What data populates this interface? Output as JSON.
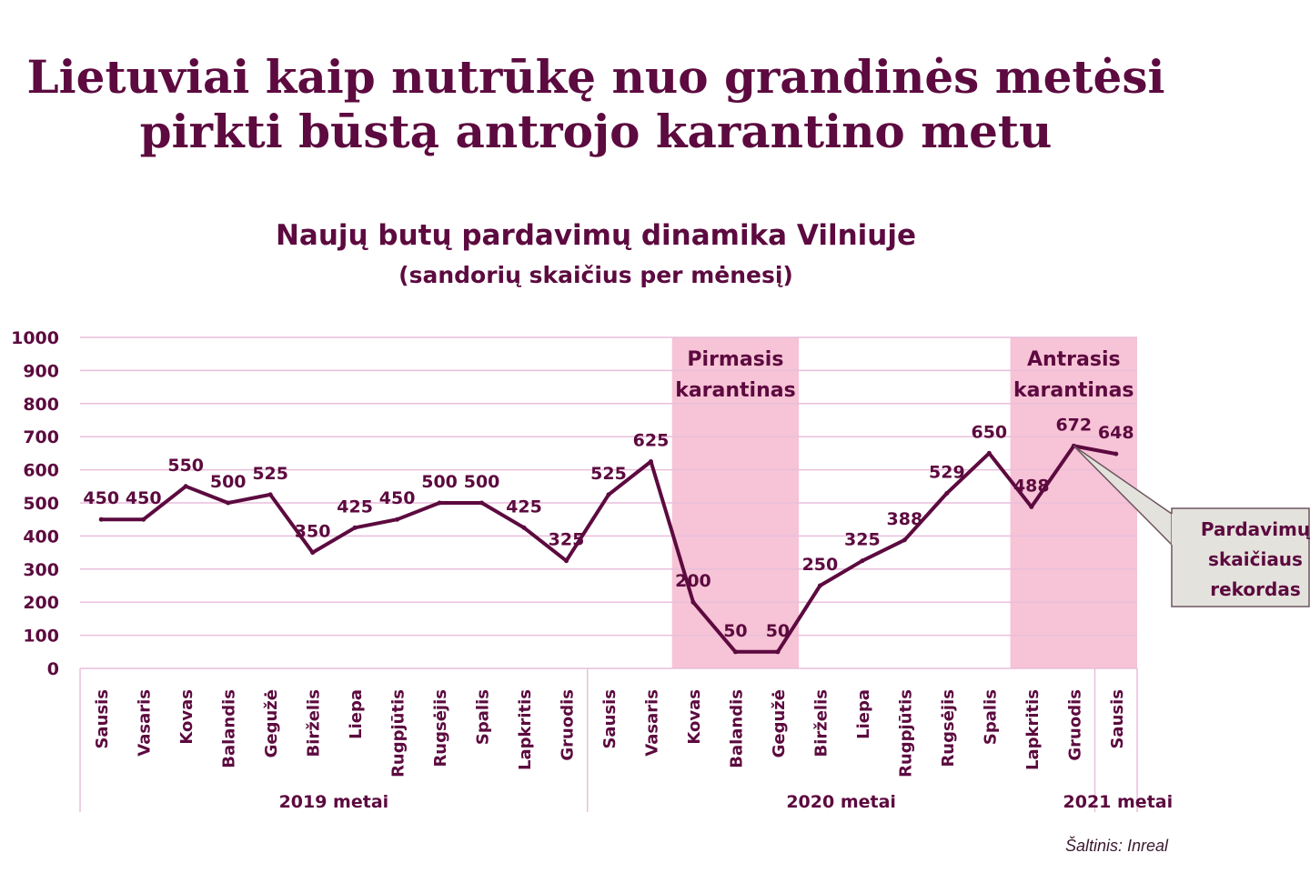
{
  "headline": {
    "line1": "Lietuviai kaip nutrūkę nuo grandinės metėsi",
    "line2": "pirkti būstą antrojo karantino metu"
  },
  "source": "Šaltinis: Inreal",
  "colors": {
    "brand": "#5c0a3f",
    "line": "#5c0a3f",
    "grid": "#e9bfdc",
    "band": "#f7c3d6",
    "callout_bg": "#e4e2dc"
  },
  "chart_data": {
    "type": "line",
    "title": "Naujų butų pardavimų dinamika Vilniuje",
    "subtitle": "(sandorių skaičius per mėnesį)",
    "ylim": [
      0,
      1000
    ],
    "yticks": [
      "0",
      "100",
      "200",
      "300",
      "400",
      "500",
      "600",
      "700",
      "800",
      "900",
      "1000"
    ],
    "categories": [
      "Sausis",
      "Vasaris",
      "Kovas",
      "Balandis",
      "Gegužė",
      "Birželis",
      "Liepa",
      "Rugpjūtis",
      "Rugsėjis",
      "Spalis",
      "Lapkritis",
      "Gruodis",
      "Sausis",
      "Vasaris",
      "Kovas",
      "Balandis",
      "Gegužė",
      "Birželis",
      "Liepa",
      "Rugpjūtis",
      "Rugsėjis",
      "Spalis",
      "Lapkritis",
      "Gruodis",
      "Sausis"
    ],
    "values": [
      450,
      450,
      550,
      500,
      525,
      350,
      425,
      450,
      500,
      500,
      425,
      325,
      525,
      625,
      200,
      50,
      50,
      250,
      325,
      388,
      529,
      650,
      488,
      672,
      648
    ],
    "year_groups": [
      {
        "label": "2019 metai",
        "start": 0,
        "end": 11
      },
      {
        "label": "2020 metai",
        "start": 12,
        "end": 23
      },
      {
        "label": "2021 metai",
        "start": 24,
        "end": 24
      }
    ],
    "highlights": [
      {
        "label_line1": "Pirmasis",
        "label_line2": "karantinas",
        "start": 14,
        "end": 16
      },
      {
        "label_line1": "Antrasis",
        "label_line2": "karantinas",
        "start": 22,
        "end": 24
      }
    ],
    "callout": {
      "lines": [
        "Pardavimų",
        "skaičiaus",
        "rekordas"
      ],
      "target_index": 23
    }
  }
}
